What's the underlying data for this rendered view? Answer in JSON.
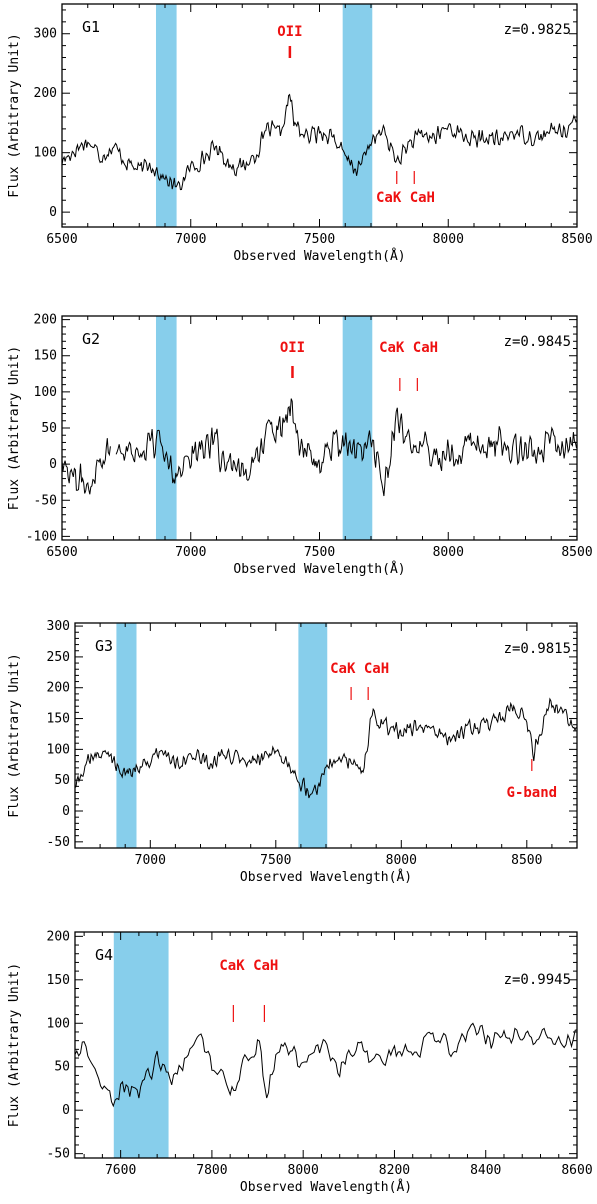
{
  "colors": {
    "band": "#87ceeb",
    "line_marker": "#ee1111",
    "spectrum": "#000000"
  },
  "chart_data": [
    {
      "type": "line",
      "panel": "G1",
      "redshift_label": "z=0.9825",
      "xlabel": "Observed Wavelength(Å)",
      "ylabel": "Flux (Arbitrary Unit)",
      "xlim": [
        6500,
        8500
      ],
      "ylim": [
        -25,
        350
      ],
      "xticks": [
        6500,
        7000,
        7500,
        8000,
        8500
      ],
      "yticks": [
        0,
        100,
        200,
        300
      ],
      "bands": [
        [
          6865,
          6945
        ],
        [
          7590,
          7705
        ]
      ],
      "features": [
        {
          "label": "OII",
          "x": 7385,
          "label_pos": "above"
        },
        {
          "label": "CaK",
          "x": 7800,
          "label_pos": "below"
        },
        {
          "label": "CaH",
          "x": 7868,
          "label_pos": "below"
        }
      ],
      "feature_labels": [
        "OII",
        "CaK CaH"
      ],
      "anchors": [
        [
          6500,
          85
        ],
        [
          6550,
          105
        ],
        [
          6600,
          120
        ],
        [
          6650,
          95
        ],
        [
          6700,
          110
        ],
        [
          6750,
          85
        ],
        [
          6800,
          70
        ],
        [
          6850,
          80
        ],
        [
          6900,
          55
        ],
        [
          6950,
          40
        ],
        [
          7000,
          75
        ],
        [
          7050,
          90
        ],
        [
          7100,
          110
        ],
        [
          7150,
          80
        ],
        [
          7200,
          75
        ],
        [
          7250,
          95
        ],
        [
          7300,
          140
        ],
        [
          7350,
          130
        ],
        [
          7385,
          200
        ],
        [
          7400,
          150
        ],
        [
          7450,
          125
        ],
        [
          7500,
          135
        ],
        [
          7550,
          130
        ],
        [
          7600,
          90
        ],
        [
          7650,
          70
        ],
        [
          7700,
          120
        ],
        [
          7750,
          135
        ],
        [
          7800,
          85
        ],
        [
          7850,
          115
        ],
        [
          7900,
          130
        ],
        [
          7950,
          125
        ],
        [
          8000,
          145
        ],
        [
          8050,
          130
        ],
        [
          8100,
          120
        ],
        [
          8150,
          125
        ],
        [
          8200,
          120
        ],
        [
          8250,
          135
        ],
        [
          8300,
          130
        ],
        [
          8350,
          125
        ],
        [
          8400,
          135
        ],
        [
          8450,
          140
        ],
        [
          8500,
          150
        ]
      ],
      "noise": 18,
      "segments": [
        [
          6500,
          8500
        ]
      ]
    },
    {
      "type": "line",
      "panel": "G2",
      "redshift_label": "z=0.9845",
      "xlabel": "Observed Wavelength(Å)",
      "ylabel": "Flux (Arbitrary Unit)",
      "xlim": [
        6500,
        8500
      ],
      "ylim": [
        -105,
        205
      ],
      "xticks": [
        6500,
        7000,
        7500,
        8000,
        8500
      ],
      "yticks": [
        -100,
        -50,
        0,
        50,
        100,
        150,
        200
      ],
      "bands": [
        [
          6865,
          6945
        ],
        [
          7590,
          7705
        ]
      ],
      "features": [
        {
          "label": "OII",
          "x": 7395,
          "label_pos": "above"
        },
        {
          "label": "CaK",
          "x": 7812,
          "label_pos": "above"
        },
        {
          "label": "CaH",
          "x": 7880,
          "label_pos": "above"
        }
      ],
      "feature_labels": [
        "OII",
        "CaK CaH"
      ],
      "anchors": [
        [
          6500,
          10
        ],
        [
          6550,
          -20
        ],
        [
          6600,
          -30
        ],
        [
          6650,
          10
        ],
        [
          6700,
          25
        ],
        [
          6750,
          20
        ],
        [
          6800,
          15
        ],
        [
          6850,
          30
        ],
        [
          6900,
          20
        ],
        [
          6950,
          -15
        ],
        [
          7000,
          15
        ],
        [
          7050,
          30
        ],
        [
          7100,
          25
        ],
        [
          7150,
          -10
        ],
        [
          7200,
          -20
        ],
        [
          7250,
          20
        ],
        [
          7300,
          40
        ],
        [
          7350,
          55
        ],
        [
          7395,
          90
        ],
        [
          7420,
          30
        ],
        [
          7450,
          10
        ],
        [
          7500,
          0
        ],
        [
          7550,
          25
        ],
        [
          7600,
          20
        ],
        [
          7650,
          10
        ],
        [
          7700,
          40
        ],
        [
          7750,
          -30
        ],
        [
          7800,
          60
        ],
        [
          7850,
          20
        ],
        [
          7900,
          30
        ],
        [
          7950,
          10
        ],
        [
          8000,
          20
        ],
        [
          8050,
          25
        ],
        [
          8100,
          30
        ],
        [
          8150,
          20
        ],
        [
          8200,
          30
        ],
        [
          8250,
          15
        ],
        [
          8300,
          25
        ],
        [
          8350,
          20
        ],
        [
          8400,
          30
        ],
        [
          8450,
          25
        ],
        [
          8500,
          20
        ]
      ],
      "noise": 28,
      "segments": [
        [
          6500,
          6690
        ],
        [
          6710,
          8500
        ]
      ]
    },
    {
      "type": "line",
      "panel": "G3",
      "redshift_label": "z=0.9815",
      "xlabel": "Observed Wavelength(Å)",
      "ylabel": "Flux (Arbitrary Unit)",
      "xlim": [
        6700,
        8700
      ],
      "ylim": [
        -60,
        305
      ],
      "xticks": [
        7000,
        7500,
        8000,
        8500
      ],
      "yticks": [
        -50,
        0,
        50,
        100,
        150,
        200,
        250,
        300
      ],
      "bands": [
        [
          6865,
          6945
        ],
        [
          7590,
          7705
        ]
      ],
      "features": [
        {
          "label": "CaK",
          "x": 7800,
          "label_pos": "above"
        },
        {
          "label": "CaH",
          "x": 7868,
          "label_pos": "above"
        },
        {
          "label": "G-band",
          "x": 8520,
          "label_pos": "below"
        }
      ],
      "feature_labels": [
        "CaK CaH",
        "G-band"
      ],
      "anchors": [
        [
          6700,
          40
        ],
        [
          6750,
          80
        ],
        [
          6800,
          95
        ],
        [
          6850,
          85
        ],
        [
          6900,
          60
        ],
        [
          6950,
          70
        ],
        [
          7000,
          85
        ],
        [
          7050,
          95
        ],
        [
          7100,
          80
        ],
        [
          7150,
          90
        ],
        [
          7200,
          85
        ],
        [
          7250,
          75
        ],
        [
          7300,
          90
        ],
        [
          7350,
          85
        ],
        [
          7400,
          80
        ],
        [
          7450,
          85
        ],
        [
          7500,
          90
        ],
        [
          7550,
          80
        ],
        [
          7600,
          45
        ],
        [
          7650,
          30
        ],
        [
          7700,
          70
        ],
        [
          7750,
          85
        ],
        [
          7800,
          80
        ],
        [
          7850,
          60
        ],
        [
          7880,
          155
        ],
        [
          7920,
          140
        ],
        [
          7950,
          135
        ],
        [
          8000,
          130
        ],
        [
          8050,
          135
        ],
        [
          8100,
          130
        ],
        [
          8150,
          125
        ],
        [
          8200,
          120
        ],
        [
          8250,
          130
        ],
        [
          8300,
          135
        ],
        [
          8350,
          140
        ],
        [
          8400,
          150
        ],
        [
          8450,
          170
        ],
        [
          8500,
          145
        ],
        [
          8530,
          90
        ],
        [
          8550,
          130
        ],
        [
          8600,
          175
        ],
        [
          8650,
          155
        ],
        [
          8700,
          130
        ]
      ],
      "noise": 16,
      "segments": [
        [
          6700,
          8700
        ]
      ]
    },
    {
      "type": "line",
      "panel": "G4",
      "redshift_label": "z=0.9945",
      "xlabel": "Observed Wavelength(Å)",
      "ylabel": "Flux (Arbitrary Unit)",
      "xlim": [
        7500,
        8600
      ],
      "ylim": [
        -55,
        205
      ],
      "xticks": [
        7600,
        7800,
        8000,
        8200,
        8400,
        8600
      ],
      "yticks": [
        -50,
        0,
        50,
        100,
        150,
        200
      ],
      "bands": [
        [
          7585,
          7705
        ]
      ],
      "features": [
        {
          "label": "CaK",
          "x": 7847,
          "label_pos": "above"
        },
        {
          "label": "CaH",
          "x": 7915,
          "label_pos": "above"
        }
      ],
      "feature_labels": [
        "CaK CaH"
      ],
      "anchors": [
        [
          7500,
          65
        ],
        [
          7520,
          70
        ],
        [
          7550,
          40
        ],
        [
          7580,
          5
        ],
        [
          7600,
          30
        ],
        [
          7640,
          25
        ],
        [
          7680,
          55
        ],
        [
          7710,
          40
        ],
        [
          7740,
          55
        ],
        [
          7760,
          75
        ],
        [
          7780,
          80
        ],
        [
          7800,
          50
        ],
        [
          7820,
          45
        ],
        [
          7850,
          20
        ],
        [
          7880,
          65
        ],
        [
          7900,
          80
        ],
        [
          7920,
          15
        ],
        [
          7940,
          60
        ],
        [
          7960,
          75
        ],
        [
          7980,
          70
        ],
        [
          8000,
          45
        ],
        [
          8020,
          60
        ],
        [
          8040,
          75
        ],
        [
          8060,
          60
        ],
        [
          8080,
          35
        ],
        [
          8100,
          70
        ],
        [
          8120,
          75
        ],
        [
          8150,
          60
        ],
        [
          8180,
          55
        ],
        [
          8200,
          70
        ],
        [
          8230,
          65
        ],
        [
          8260,
          75
        ],
        [
          8300,
          80
        ],
        [
          8330,
          70
        ],
        [
          8360,
          95
        ],
        [
          8400,
          85
        ],
        [
          8430,
          80
        ],
        [
          8460,
          90
        ],
        [
          8500,
          80
        ],
        [
          8530,
          85
        ],
        [
          8560,
          75
        ],
        [
          8600,
          90
        ]
      ],
      "noise": 14,
      "segments": [
        [
          7500,
          8600
        ]
      ]
    }
  ]
}
